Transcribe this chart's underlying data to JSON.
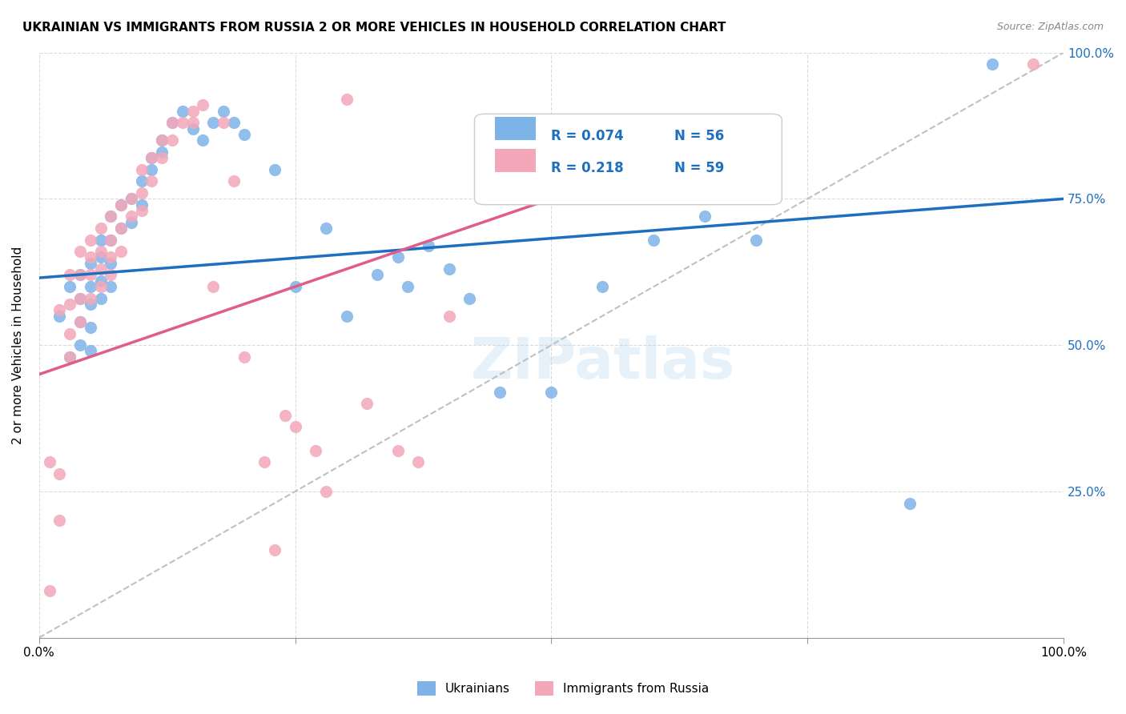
{
  "title": "UKRAINIAN VS IMMIGRANTS FROM RUSSIA 2 OR MORE VEHICLES IN HOUSEHOLD CORRELATION CHART",
  "source": "Source: ZipAtlas.com",
  "xlabel": "",
  "ylabel": "2 or more Vehicles in Household",
  "xlim": [
    0,
    1
  ],
  "ylim": [
    0,
    1
  ],
  "xtick_labels": [
    "0.0%",
    "100.0%"
  ],
  "ytick_labels_right": [
    "100.0%",
    "75.0%",
    "50.0%",
    "25.0%"
  ],
  "watermark": "ZIPatlas",
  "legend_r1": "R = 0.074",
  "legend_n1": "N = 56",
  "legend_r2": "R = 0.218",
  "legend_n2": "N = 59",
  "legend_label1": "Ukrainians",
  "legend_label2": "Immigrants from Russia",
  "blue_color": "#7EB3E8",
  "pink_color": "#F4A7B9",
  "trend_blue": "#1F6FBF",
  "trend_pink": "#E05C8A",
  "trend_dashed": "#C0C0C0",
  "blue_scatter_x": [
    0.02,
    0.03,
    0.03,
    0.04,
    0.04,
    0.04,
    0.04,
    0.05,
    0.05,
    0.05,
    0.05,
    0.05,
    0.06,
    0.06,
    0.06,
    0.06,
    0.07,
    0.07,
    0.07,
    0.07,
    0.08,
    0.08,
    0.09,
    0.09,
    0.1,
    0.1,
    0.11,
    0.11,
    0.12,
    0.12,
    0.13,
    0.14,
    0.15,
    0.16,
    0.17,
    0.18,
    0.19,
    0.2,
    0.23,
    0.25,
    0.28,
    0.3,
    0.33,
    0.35,
    0.36,
    0.38,
    0.4,
    0.42,
    0.45,
    0.5,
    0.55,
    0.6,
    0.65,
    0.7,
    0.85,
    0.93
  ],
  "blue_scatter_y": [
    0.55,
    0.6,
    0.48,
    0.62,
    0.58,
    0.54,
    0.5,
    0.64,
    0.6,
    0.57,
    0.53,
    0.49,
    0.68,
    0.65,
    0.61,
    0.58,
    0.72,
    0.68,
    0.64,
    0.6,
    0.74,
    0.7,
    0.75,
    0.71,
    0.78,
    0.74,
    0.8,
    0.82,
    0.85,
    0.83,
    0.88,
    0.9,
    0.87,
    0.85,
    0.88,
    0.9,
    0.88,
    0.86,
    0.8,
    0.6,
    0.7,
    0.55,
    0.62,
    0.65,
    0.6,
    0.67,
    0.63,
    0.58,
    0.42,
    0.42,
    0.6,
    0.68,
    0.72,
    0.68,
    0.23,
    0.98
  ],
  "pink_scatter_x": [
    0.01,
    0.01,
    0.02,
    0.02,
    0.02,
    0.03,
    0.03,
    0.03,
    0.03,
    0.04,
    0.04,
    0.04,
    0.04,
    0.05,
    0.05,
    0.05,
    0.05,
    0.06,
    0.06,
    0.06,
    0.06,
    0.07,
    0.07,
    0.07,
    0.07,
    0.08,
    0.08,
    0.08,
    0.09,
    0.09,
    0.1,
    0.1,
    0.1,
    0.11,
    0.11,
    0.12,
    0.12,
    0.13,
    0.13,
    0.14,
    0.15,
    0.15,
    0.16,
    0.17,
    0.18,
    0.19,
    0.2,
    0.22,
    0.23,
    0.24,
    0.25,
    0.27,
    0.28,
    0.3,
    0.32,
    0.35,
    0.37,
    0.4,
    0.97
  ],
  "pink_scatter_y": [
    0.3,
    0.08,
    0.28,
    0.2,
    0.56,
    0.62,
    0.57,
    0.52,
    0.48,
    0.66,
    0.62,
    0.58,
    0.54,
    0.68,
    0.65,
    0.62,
    0.58,
    0.7,
    0.66,
    0.63,
    0.6,
    0.72,
    0.68,
    0.65,
    0.62,
    0.74,
    0.7,
    0.66,
    0.75,
    0.72,
    0.8,
    0.76,
    0.73,
    0.82,
    0.78,
    0.85,
    0.82,
    0.88,
    0.85,
    0.88,
    0.9,
    0.88,
    0.91,
    0.6,
    0.88,
    0.78,
    0.48,
    0.3,
    0.15,
    0.38,
    0.36,
    0.32,
    0.25,
    0.92,
    0.4,
    0.32,
    0.3,
    0.55,
    0.98
  ]
}
